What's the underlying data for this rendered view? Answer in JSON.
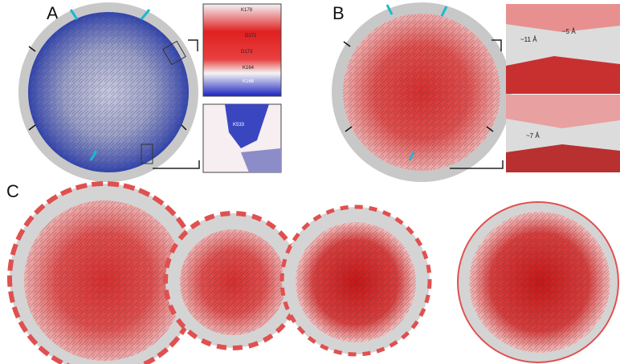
{
  "panels": [
    {
      "label": "A",
      "insets": [
        {
          "residues": [
            "K179",
            "D171",
            "D173",
            "K164",
            "K168"
          ]
        },
        {
          "residues": [
            "K533"
          ]
        }
      ]
    },
    {
      "label": "B",
      "insets": [
        {
          "residues": [
            "~11 Å",
            "~5 Å"
          ]
        },
        {
          "residues": [
            "~7 Å"
          ]
        }
      ]
    },
    {
      "label": "C"
    }
  ]
}
